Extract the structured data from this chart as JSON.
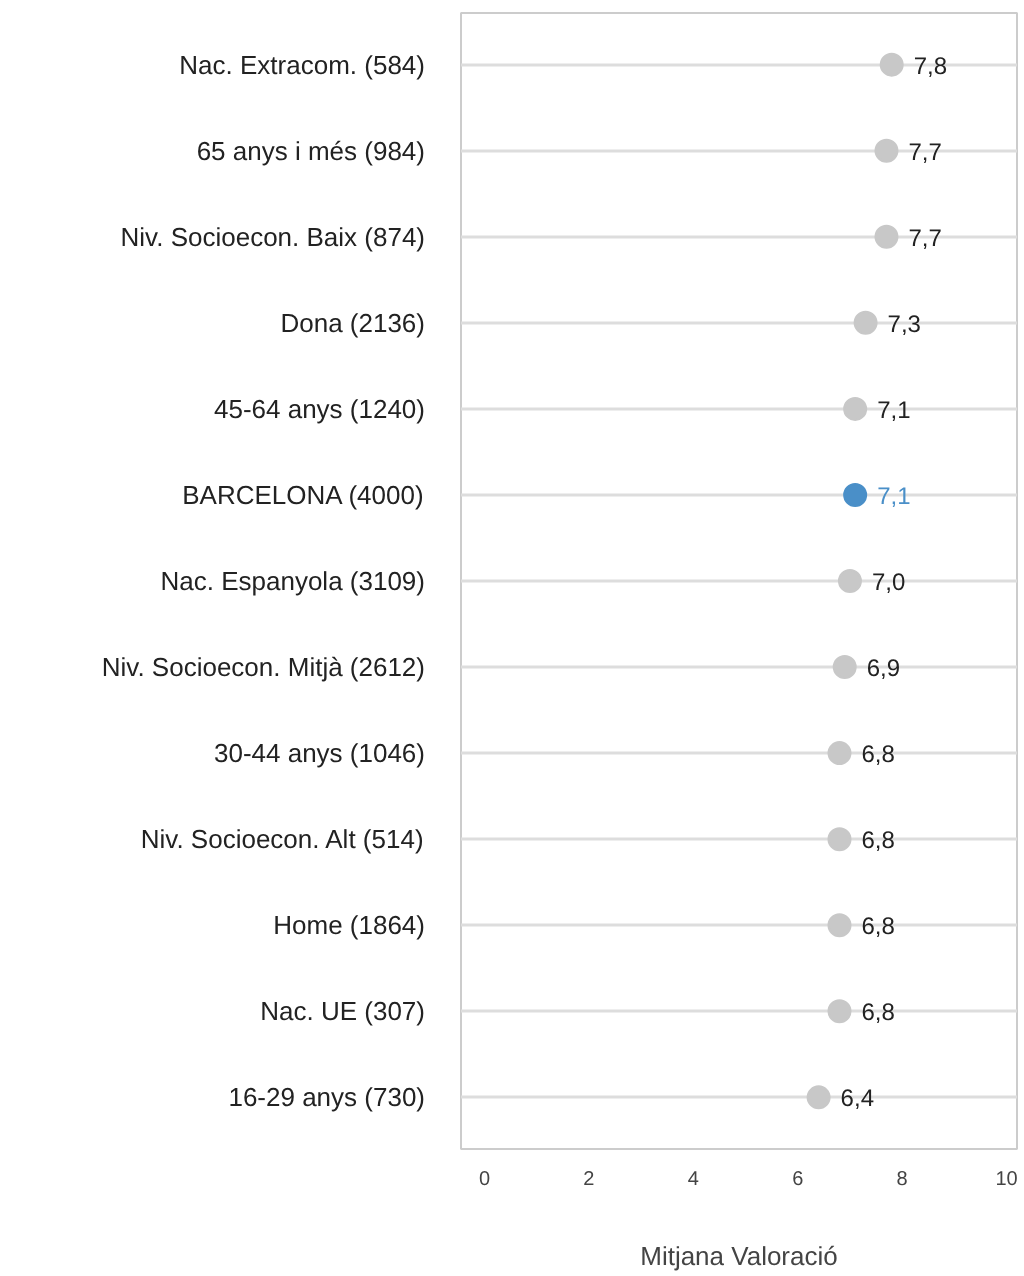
{
  "chart_data": {
    "type": "scatter",
    "orientation": "horizontal",
    "xlabel": "Mitjana Valoració",
    "categories": [
      "Nac. Extracom. (584)",
      "65 anys i més (984)",
      "Niv. Socioecon. Baix (874)",
      "Dona (2136)",
      "45-64 anys (1240)",
      "BARCELONA (4000)",
      "Nac. Espanyola (3109)",
      "Niv. Socioecon. Mitjà (2612)",
      "30-44 anys (1046)",
      "Niv. Socioecon. Alt (514)",
      "Home (1864)",
      "Nac. UE (307)",
      "16-29 anys (730)"
    ],
    "values": [
      7.8,
      7.7,
      7.7,
      7.3,
      7.1,
      7.1,
      7.0,
      6.9,
      6.8,
      6.8,
      6.8,
      6.8,
      6.4
    ],
    "value_labels": [
      "7,8",
      "7,7",
      "7,7",
      "7,3",
      "7,1",
      "7,1",
      "7,0",
      "6,9",
      "6,8",
      "6,8",
      "6,8",
      "6,8",
      "6,4"
    ],
    "colors": [
      "#c8c8c8",
      "#c8c8c8",
      "#c8c8c8",
      "#c8c8c8",
      "#c8c8c8",
      "#4a8fc8",
      "#c8c8c8",
      "#c8c8c8",
      "#c8c8c8",
      "#c8c8c8",
      "#c8c8c8",
      "#c8c8c8",
      "#c8c8c8"
    ],
    "xlim": [
      -0.45,
      10.2
    ],
    "xticks": [
      0,
      2,
      4,
      6,
      8,
      10
    ],
    "grid": "y",
    "marker": "circle"
  }
}
